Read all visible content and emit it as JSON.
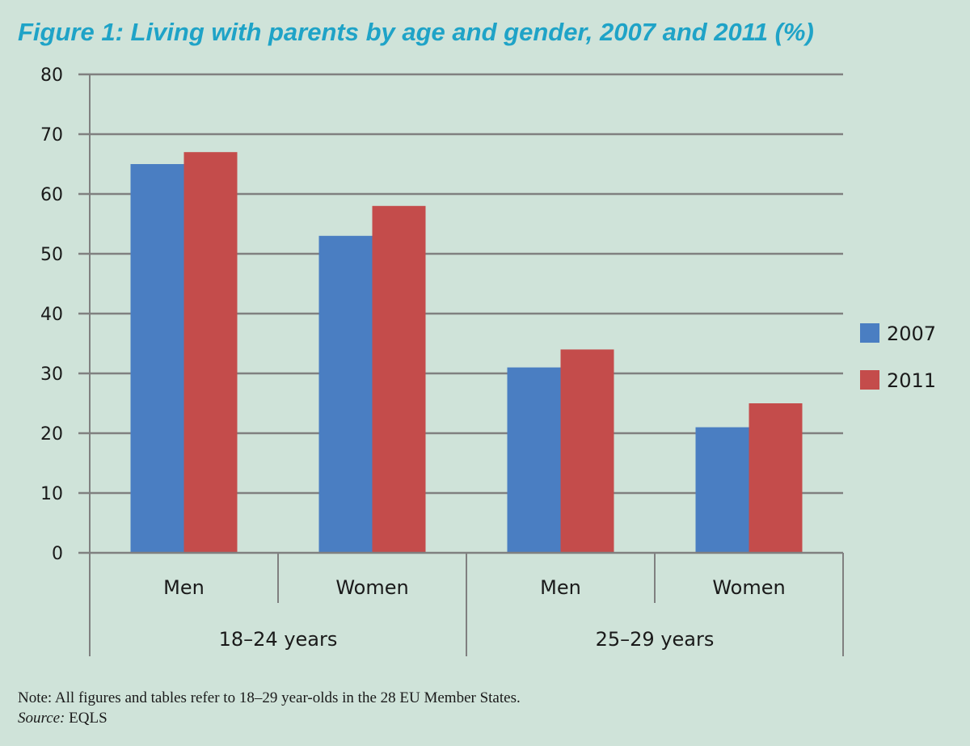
{
  "chart_data": {
    "type": "bar",
    "title": "Figure 1: Living with parents by age and gender, 2007 and 2011 (%)",
    "categories": [
      "Men",
      "Women",
      "Men",
      "Women"
    ],
    "groups": [
      "18–24 years",
      "25–29 years"
    ],
    "series": [
      {
        "name": "2007",
        "color": "#4a7ec2",
        "values": [
          65,
          53,
          31,
          21
        ]
      },
      {
        "name": "2011",
        "color": "#c44c4b",
        "values": [
          67,
          58,
          34,
          25
        ]
      }
    ],
    "ylim": [
      0,
      80
    ],
    "yticks": [
      "0",
      "10",
      "20",
      "30",
      "40",
      "50",
      "60",
      "70",
      "80"
    ],
    "grid": true,
    "legend_position": "right"
  },
  "note": {
    "text": "Note: All figures and tables refer to 18–29 year-olds in the 28 EU Member States.",
    "source_label": "Source:",
    "source_value": " EQLS"
  }
}
